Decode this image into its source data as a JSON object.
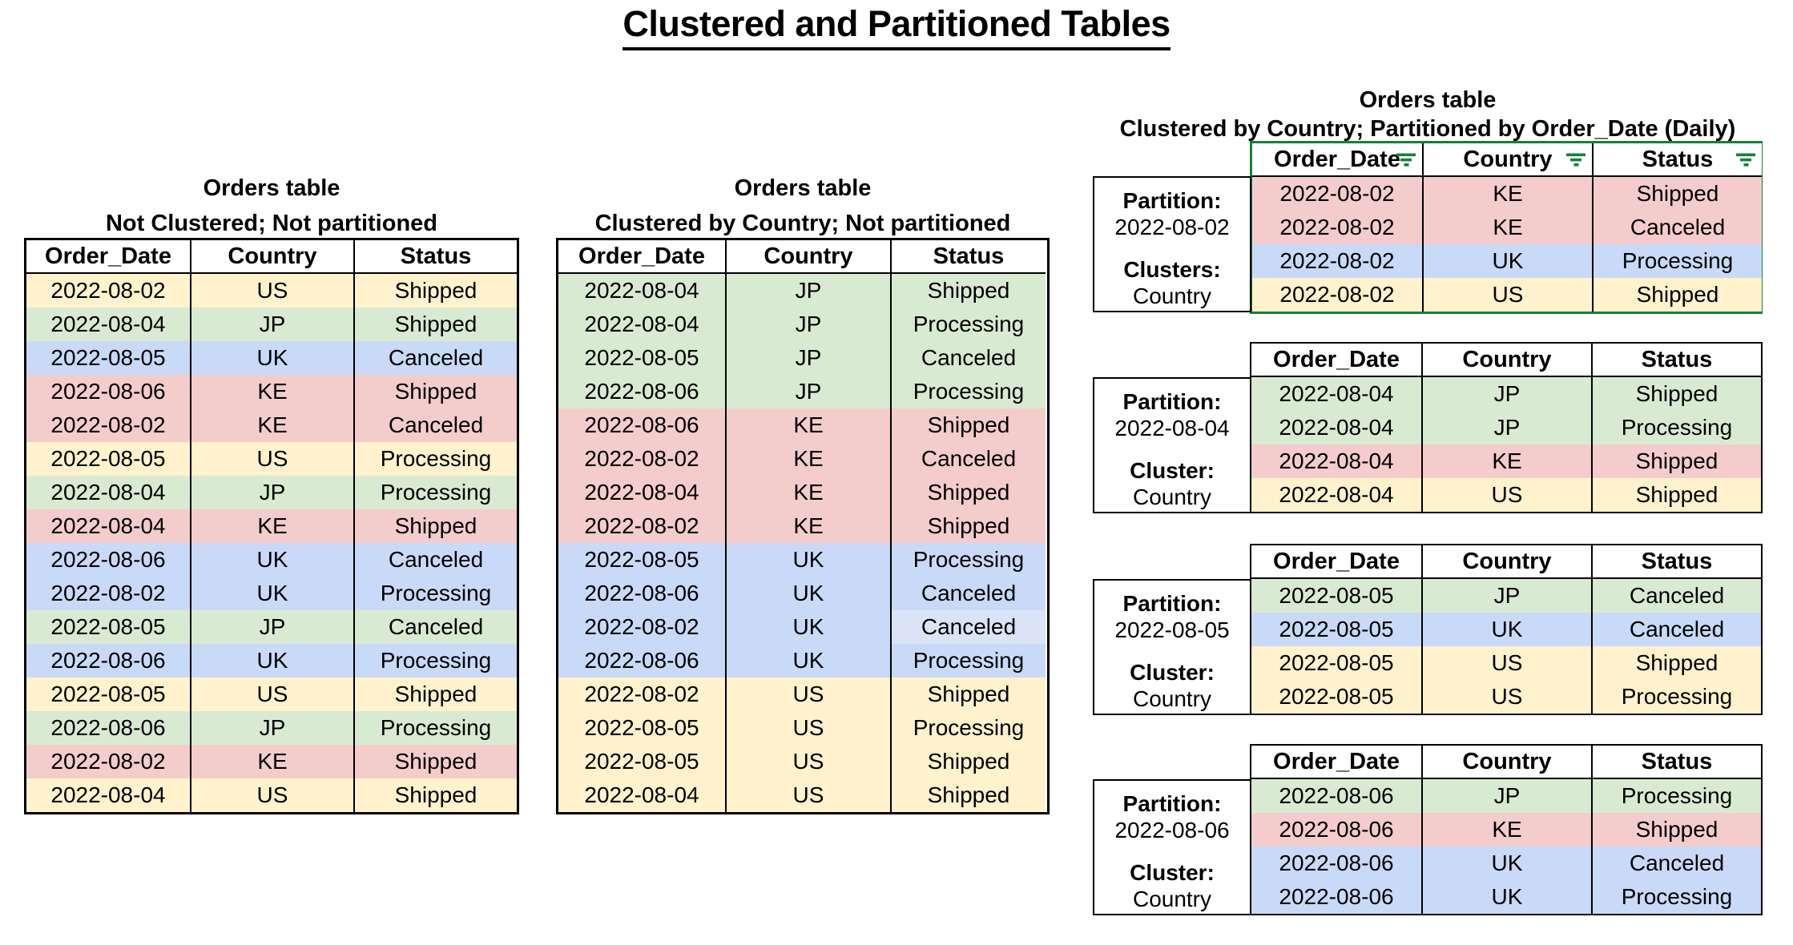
{
  "page_title": "Clustered and Partitioned Tables",
  "columns": [
    "Order_Date",
    "Country",
    "Status"
  ],
  "colors": {
    "yellow": "#fff2cc",
    "green": "#d9ead3",
    "blue": "#c9daf8",
    "red": "#f4cccc",
    "blue_light": "#dbe4f6",
    "accent_green": "#188038",
    "border_black": "#000000"
  },
  "icons": {
    "filter": "filter-icon"
  },
  "tables": {
    "left": {
      "title": "Orders table",
      "subtitle": "Not Clustered; Not partitioned",
      "rows": [
        [
          "2022-08-02",
          "US",
          "Shipped",
          "yellow"
        ],
        [
          "2022-08-04",
          "JP",
          "Shipped",
          "green"
        ],
        [
          "2022-08-05",
          "UK",
          "Canceled",
          "blue"
        ],
        [
          "2022-08-06",
          "KE",
          "Shipped",
          "red"
        ],
        [
          "2022-08-02",
          "KE",
          "Canceled",
          "red"
        ],
        [
          "2022-08-05",
          "US",
          "Processing",
          "yellow"
        ],
        [
          "2022-08-04",
          "JP",
          "Processing",
          "green"
        ],
        [
          "2022-08-04",
          "KE",
          "Shipped",
          "red"
        ],
        [
          "2022-08-06",
          "UK",
          "Canceled",
          "blue"
        ],
        [
          "2022-08-02",
          "UK",
          "Processing",
          "blue"
        ],
        [
          "2022-08-05",
          "JP",
          "Canceled",
          "green"
        ],
        [
          "2022-08-06",
          "UK",
          "Processing",
          "blue"
        ],
        [
          "2022-08-05",
          "US",
          "Shipped",
          "yellow"
        ],
        [
          "2022-08-06",
          "JP",
          "Processing",
          "green"
        ],
        [
          "2022-08-02",
          "KE",
          "Shipped",
          "red"
        ],
        [
          "2022-08-04",
          "US",
          "Shipped",
          "yellow"
        ]
      ]
    },
    "middle": {
      "title": "Orders table",
      "subtitle": "Clustered by Country; Not partitioned",
      "rows": [
        [
          "2022-08-04",
          "JP",
          "Shipped",
          "green"
        ],
        [
          "2022-08-04",
          "JP",
          "Processing",
          "green"
        ],
        [
          "2022-08-05",
          "JP",
          "Canceled",
          "green"
        ],
        [
          "2022-08-06",
          "JP",
          "Processing",
          "green"
        ],
        [
          "2022-08-06",
          "KE",
          "Shipped",
          "red"
        ],
        [
          "2022-08-02",
          "KE",
          "Canceled",
          "red"
        ],
        [
          "2022-08-04",
          "KE",
          "Shipped",
          "red"
        ],
        [
          "2022-08-02",
          "KE",
          "Shipped",
          "red"
        ],
        [
          "2022-08-05",
          "UK",
          "Processing",
          "blue"
        ],
        [
          "2022-08-06",
          "UK",
          "Canceled",
          "blue"
        ],
        [
          "2022-08-02",
          "UK",
          "Canceled",
          "blue",
          "blue_light"
        ],
        [
          "2022-08-06",
          "UK",
          "Processing",
          "blue"
        ],
        [
          "2022-08-02",
          "US",
          "Shipped",
          "yellow"
        ],
        [
          "2022-08-05",
          "US",
          "Processing",
          "yellow"
        ],
        [
          "2022-08-05",
          "US",
          "Shipped",
          "yellow"
        ],
        [
          "2022-08-04",
          "US",
          "Shipped",
          "yellow"
        ]
      ]
    },
    "right": {
      "title": "Orders table",
      "subtitle": "Clustered by Country; Partitioned by Order_Date (Daily)",
      "partitions": [
        {
          "partition_label": "Partition:",
          "partition_value": "2022-08-02",
          "cluster_label": "Clusters:",
          "cluster_value": "Country",
          "filtered": true,
          "rows": [
            [
              "2022-08-02",
              "KE",
              "Shipped",
              "red"
            ],
            [
              "2022-08-02",
              "KE",
              "Canceled",
              "red"
            ],
            [
              "2022-08-02",
              "UK",
              "Processing",
              "blue"
            ],
            [
              "2022-08-02",
              "US",
              "Shipped",
              "yellow"
            ]
          ]
        },
        {
          "partition_label": "Partition:",
          "partition_value": "2022-08-04",
          "cluster_label": "Cluster:",
          "cluster_value": "Country",
          "filtered": false,
          "rows": [
            [
              "2022-08-04",
              "JP",
              "Shipped",
              "green"
            ],
            [
              "2022-08-04",
              "JP",
              "Processing",
              "green"
            ],
            [
              "2022-08-04",
              "KE",
              "Shipped",
              "red"
            ],
            [
              "2022-08-04",
              "US",
              "Shipped",
              "yellow"
            ]
          ]
        },
        {
          "partition_label": "Partition:",
          "partition_value": "2022-08-05",
          "cluster_label": "Cluster:",
          "cluster_value": "Country",
          "filtered": false,
          "rows": [
            [
              "2022-08-05",
              "JP",
              "Canceled",
              "green"
            ],
            [
              "2022-08-05",
              "UK",
              "Canceled",
              "blue"
            ],
            [
              "2022-08-05",
              "US",
              "Shipped",
              "yellow"
            ],
            [
              "2022-08-05",
              "US",
              "Processing",
              "yellow"
            ]
          ]
        },
        {
          "partition_label": "Partition:",
          "partition_value": "2022-08-06",
          "cluster_label": "Cluster:",
          "cluster_value": "Country",
          "filtered": false,
          "rows": [
            [
              "2022-08-06",
              "JP",
              "Processing",
              "green"
            ],
            [
              "2022-08-06",
              "KE",
              "Shipped",
              "red"
            ],
            [
              "2022-08-06",
              "UK",
              "Canceled",
              "blue"
            ],
            [
              "2022-08-06",
              "UK",
              "Processing",
              "blue"
            ]
          ]
        }
      ]
    }
  }
}
